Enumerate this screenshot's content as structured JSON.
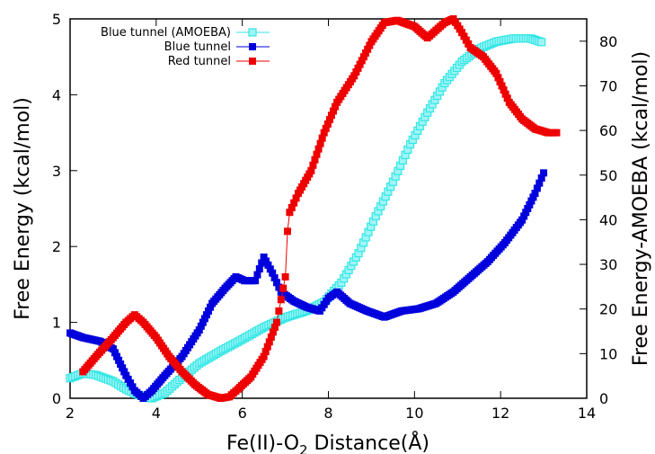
{
  "chart_data": {
    "type": "scatter",
    "xlabel": "Fe(II)-O",
    "xlabel_sub": "2",
    "xlabel_suffix": " Distance(Å)",
    "ylabel": "Free Energy (kcal/mol)",
    "y2label": "Free Energy-AMOEBA (kcal/mol)",
    "xlim": [
      2,
      14
    ],
    "ylim": [
      0,
      5
    ],
    "y2lim": [
      0,
      85
    ],
    "xticks": [
      2,
      4,
      6,
      8,
      10,
      12,
      14
    ],
    "yticks": [
      0,
      1,
      2,
      3,
      4,
      5
    ],
    "y2ticks": [
      0,
      10,
      20,
      30,
      40,
      50,
      60,
      70,
      80
    ],
    "grid": false,
    "legend_position": "top-left",
    "series": [
      {
        "name": "Blue tunnel (AMOEBA)",
        "axis": "y2",
        "color": "#33e6e6",
        "marker": "square-open",
        "x": [
          2.0,
          2.3,
          2.6,
          3.0,
          3.3,
          3.6,
          3.9,
          4.2,
          4.6,
          5.0,
          5.5,
          6.0,
          6.5,
          7.0,
          7.5,
          7.9,
          8.3,
          8.7,
          9.1,
          9.5,
          9.9,
          10.3,
          10.7,
          11.1,
          11.5,
          11.9,
          12.3,
          12.7,
          12.95
        ],
        "y": [
          4.5,
          5.6,
          5.2,
          3.8,
          2.0,
          0.7,
          0.0,
          1.2,
          4.6,
          7.8,
          10.6,
          13.2,
          15.9,
          18.1,
          19.6,
          21.6,
          25.9,
          32.5,
          40.8,
          48.5,
          56.9,
          64.0,
          70.6,
          75.4,
          78.3,
          79.9,
          80.6,
          80.6,
          79.8
        ]
      },
      {
        "name": "Blue tunnel",
        "axis": "y",
        "color": "#0000dd",
        "marker": "square",
        "x": [
          2.0,
          2.3,
          2.7,
          3.0,
          3.3,
          3.5,
          3.7,
          3.9,
          4.2,
          4.6,
          5.0,
          5.3,
          5.6,
          5.85,
          6.05,
          6.3,
          6.5,
          6.7,
          6.9,
          7.2,
          7.5,
          7.8,
          8.0,
          8.2,
          8.5,
          8.9,
          9.3,
          9.7,
          10.1,
          10.5,
          10.9,
          11.3,
          11.7,
          12.1,
          12.5,
          12.8,
          13.0
        ],
        "y": [
          0.86,
          0.8,
          0.75,
          0.65,
          0.3,
          0.1,
          0.0,
          0.1,
          0.3,
          0.55,
          0.9,
          1.25,
          1.45,
          1.6,
          1.55,
          1.55,
          1.86,
          1.65,
          1.4,
          1.28,
          1.2,
          1.15,
          1.32,
          1.4,
          1.25,
          1.15,
          1.07,
          1.15,
          1.18,
          1.25,
          1.4,
          1.6,
          1.8,
          2.05,
          2.35,
          2.7,
          2.97
        ]
      },
      {
        "name": "Red tunnel",
        "axis": "y",
        "color": "#ee0000",
        "marker": "square",
        "x": [
          2.3,
          2.6,
          3.0,
          3.3,
          3.5,
          3.7,
          4.0,
          4.3,
          4.6,
          4.9,
          5.2,
          5.5,
          5.7,
          5.9,
          6.2,
          6.5,
          6.8,
          7.0,
          7.05,
          7.1,
          7.3,
          7.6,
          7.9,
          8.2,
          8.6,
          9.0,
          9.3,
          9.6,
          10.0,
          10.3,
          10.5,
          10.7,
          10.9,
          11.1,
          11.3,
          11.6,
          11.9,
          12.2,
          12.5,
          12.8,
          13.1,
          13.3
        ],
        "y": [
          0.35,
          0.55,
          0.8,
          1.0,
          1.1,
          1.0,
          0.8,
          0.55,
          0.35,
          0.18,
          0.05,
          0.0,
          0.02,
          0.12,
          0.28,
          0.55,
          1.0,
          1.6,
          2.2,
          2.45,
          2.7,
          3.0,
          3.5,
          3.9,
          4.25,
          4.7,
          4.95,
          4.98,
          4.9,
          4.75,
          4.85,
          4.95,
          5.0,
          4.82,
          4.62,
          4.5,
          4.28,
          3.9,
          3.68,
          3.55,
          3.5,
          3.5
        ]
      }
    ]
  }
}
